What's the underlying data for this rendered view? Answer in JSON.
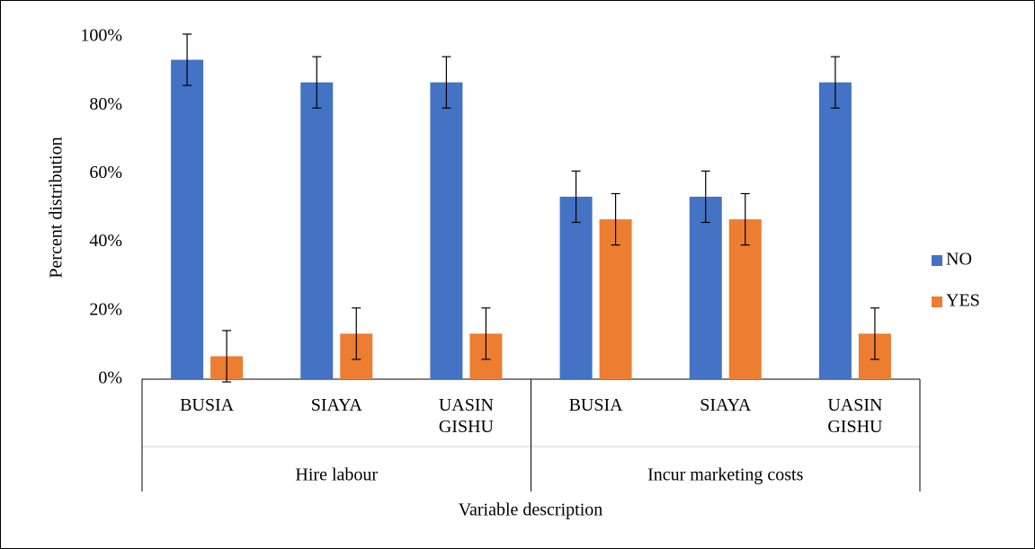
{
  "chart_data": {
    "type": "bar",
    "groups": [
      {
        "name": "Hire labour",
        "categories": [
          "BUSIA",
          "SIAYA",
          "UASIN GISHU"
        ]
      },
      {
        "name": "Incur marketing costs",
        "categories": [
          "BUSIA",
          "SIAYA",
          "UASIN GISHU"
        ]
      }
    ],
    "series": [
      {
        "name": "NO",
        "color": "#4472c4",
        "values": [
          93.3,
          86.7,
          86.7,
          53.3,
          53.3,
          86.7
        ],
        "errors": [
          7.5,
          7.5,
          7.5,
          7.5,
          7.5,
          7.5
        ]
      },
      {
        "name": "YES",
        "color": "#ed7d31",
        "values": [
          6.7,
          13.3,
          13.3,
          46.7,
          46.7,
          13.3
        ],
        "errors": [
          7.5,
          7.5,
          7.5,
          7.5,
          7.5,
          7.5
        ]
      }
    ],
    "ylim": [
      0,
      100
    ],
    "yticks": [
      {
        "value": 0,
        "label": "0%"
      },
      {
        "value": 20,
        "label": "20%"
      },
      {
        "value": 40,
        "label": "40%"
      },
      {
        "value": 60,
        "label": "60%"
      },
      {
        "value": 80,
        "label": "80%"
      },
      {
        "value": 100,
        "label": "100%"
      }
    ],
    "ylabel": "Percent distribution",
    "xlabel": "Variable description",
    "legend": "right"
  }
}
